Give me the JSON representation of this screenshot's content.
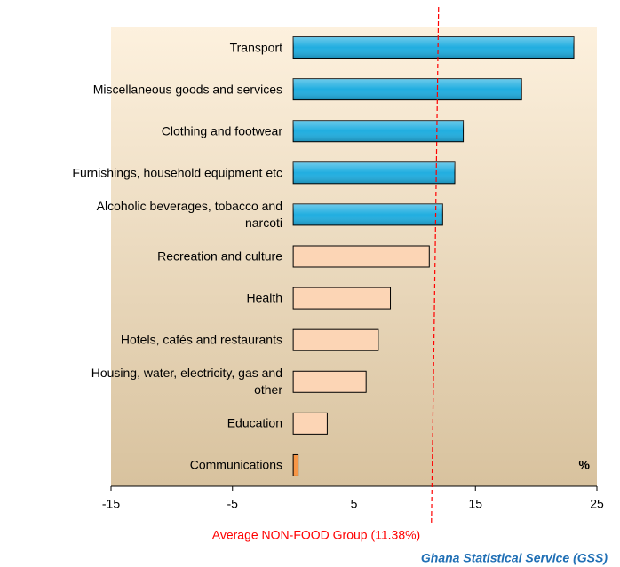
{
  "chart_data": {
    "type": "barh",
    "categories": [
      "Transport",
      "Miscellaneous goods and services",
      "Clothing and footwear",
      "Furnishings, household equipment etc",
      "Alcoholic beverages, tobacco and\nnarcoti",
      "Recreation and culture",
      "Health",
      "Hotels, cafés and restaurants",
      "Housing, water, electricity, gas and\nother",
      "Education",
      "Communications"
    ],
    "values": [
      23.1,
      18.8,
      14.0,
      13.3,
      12.3,
      11.2,
      8.0,
      7.0,
      6.0,
      2.8,
      0.4
    ],
    "colors": [
      "#21aee0",
      "#21aee0",
      "#21aee0",
      "#21aee0",
      "#21aee0",
      "#fcd5b5",
      "#fcd5b5",
      "#fcd5b5",
      "#fcd5b5",
      "#fcd5b5",
      "#f79646"
    ],
    "xlim": [
      -15,
      25
    ],
    "xticks": [
      -15,
      -5,
      5,
      15,
      25
    ],
    "unit_label": "%",
    "reference_line": {
      "value": 11.38,
      "color": "#ff0000",
      "label": "Average NON-FOOD Group (11.38%)"
    },
    "source": "Ghana Statistical Service (GSS)"
  }
}
